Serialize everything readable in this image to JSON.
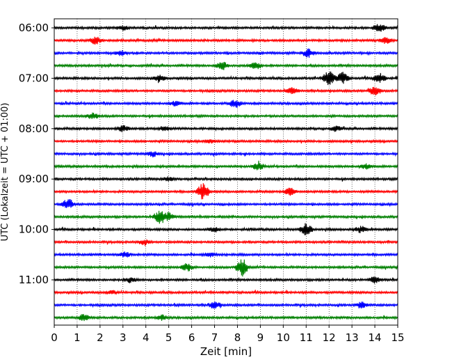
{
  "chart_data": {
    "type": "line",
    "title": "",
    "xlabel": "Zeit  [min]",
    "ylabel": "UTC (Lokalzeit = UTC + 01:00)",
    "xlim": [
      0,
      15
    ],
    "x_ticks": [
      0,
      1,
      2,
      3,
      4,
      5,
      6,
      7,
      8,
      9,
      10,
      11,
      12,
      13,
      14,
      15
    ],
    "y_tick_labels": [
      "06:00",
      "07:00",
      "08:00",
      "09:00",
      "10:00",
      "11:00"
    ],
    "grid": "vertical dotted",
    "trace_colors": [
      "#000000",
      "#ff0000",
      "#0000ff",
      "#008000"
    ],
    "traces": [
      {
        "start": "06:00",
        "events": [
          [
            3.0,
            0.4
          ],
          [
            14.2,
            0.7
          ]
        ]
      },
      {
        "start": "06:15",
        "events": [
          [
            1.8,
            0.6
          ],
          [
            14.5,
            0.5
          ]
        ]
      },
      {
        "start": "06:30",
        "events": [
          [
            2.9,
            0.4
          ],
          [
            11.1,
            0.7
          ]
        ]
      },
      {
        "start": "06:45",
        "events": [
          [
            7.3,
            0.8
          ],
          [
            8.8,
            0.6
          ]
        ]
      },
      {
        "start": "07:00",
        "events": [
          [
            4.6,
            0.5
          ],
          [
            12.0,
            1.4
          ],
          [
            12.6,
            1.0
          ],
          [
            14.2,
            0.8
          ]
        ]
      },
      {
        "start": "07:15",
        "events": [
          [
            10.4,
            0.5
          ],
          [
            14.0,
            0.8
          ]
        ]
      },
      {
        "start": "07:30",
        "events": [
          [
            5.3,
            0.4
          ],
          [
            7.9,
            0.7
          ]
        ]
      },
      {
        "start": "07:45",
        "events": [
          [
            1.7,
            0.5
          ]
        ]
      },
      {
        "start": "08:00",
        "events": [
          [
            3.0,
            0.5
          ],
          [
            4.8,
            0.4
          ],
          [
            12.3,
            0.4
          ]
        ]
      },
      {
        "start": "08:15",
        "events": [
          [
            6.8,
            0.3
          ]
        ]
      },
      {
        "start": "08:30",
        "events": [
          [
            4.3,
            0.4
          ]
        ]
      },
      {
        "start": "08:45",
        "events": [
          [
            8.9,
            0.6
          ],
          [
            13.6,
            0.4
          ]
        ]
      },
      {
        "start": "09:00",
        "events": [
          [
            5.0,
            0.3
          ]
        ]
      },
      {
        "start": "09:15",
        "events": [
          [
            6.5,
            1.4
          ],
          [
            10.3,
            0.6
          ]
        ]
      },
      {
        "start": "09:30",
        "events": [
          [
            0.6,
            0.9
          ]
        ]
      },
      {
        "start": "09:45",
        "events": [
          [
            4.6,
            1.0
          ],
          [
            5.0,
            0.7
          ]
        ]
      },
      {
        "start": "10:00",
        "events": [
          [
            7.0,
            0.4
          ],
          [
            11.0,
            1.0
          ],
          [
            13.4,
            0.5
          ]
        ]
      },
      {
        "start": "10:15",
        "events": [
          [
            3.9,
            0.4
          ]
        ]
      },
      {
        "start": "10:30",
        "events": [
          [
            3.1,
            0.4
          ],
          [
            6.8,
            0.3
          ]
        ]
      },
      {
        "start": "10:45",
        "events": [
          [
            5.8,
            0.6
          ],
          [
            8.2,
            1.5
          ]
        ]
      },
      {
        "start": "11:00",
        "events": [
          [
            3.3,
            0.4
          ],
          [
            14.0,
            0.5
          ]
        ]
      },
      {
        "start": "11:15",
        "events": [
          [
            2.5,
            0.3
          ]
        ]
      },
      {
        "start": "11:30",
        "events": [
          [
            7.0,
            0.6
          ],
          [
            13.4,
            0.5
          ]
        ]
      },
      {
        "start": "11:45",
        "events": [
          [
            1.3,
            0.6
          ],
          [
            4.7,
            0.4
          ]
        ]
      }
    ]
  }
}
